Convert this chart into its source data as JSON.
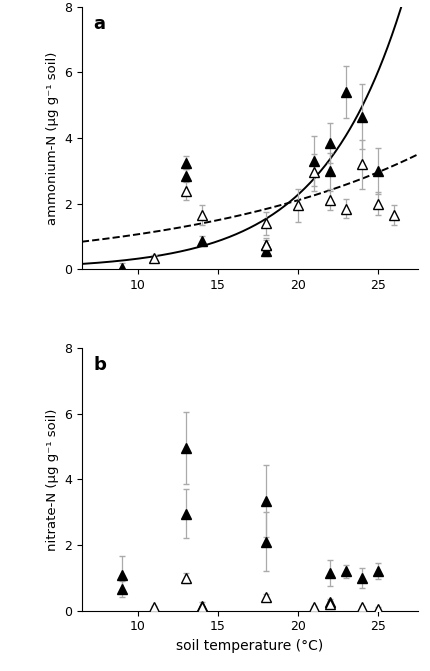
{
  "panel_a_label": "a",
  "panel_b_label": "b",
  "ylabel_a": "ammonium-N (μg g⁻¹ soil)",
  "ylabel_b": "nitrate-N (μg g⁻¹ soil)",
  "xlabel": "soil temperature (°C)",
  "ylim": [
    0,
    8
  ],
  "xlim": [
    6.5,
    27.5
  ],
  "xticks": [
    10,
    15,
    20,
    25
  ],
  "yticks": [
    0,
    2,
    4,
    6,
    8
  ],
  "panel_a": {
    "filled_x": [
      9,
      13,
      13,
      14,
      18,
      18,
      21,
      22,
      22,
      23,
      24,
      25
    ],
    "filled_y": [
      0.05,
      3.25,
      2.85,
      0.85,
      0.75,
      0.55,
      3.3,
      3.0,
      3.85,
      5.4,
      4.65,
      3.0
    ],
    "filled_yerr": [
      0.15,
      0.2,
      0.2,
      0.15,
      0.15,
      0.15,
      0.75,
      0.55,
      0.6,
      0.8,
      1.0,
      0.7
    ],
    "open_x": [
      11,
      13,
      14,
      18,
      18,
      20,
      21,
      22,
      23,
      24,
      25,
      26
    ],
    "open_y": [
      0.35,
      2.4,
      1.65,
      1.4,
      0.75,
      1.95,
      2.95,
      2.1,
      1.85,
      3.2,
      2.0,
      1.65
    ],
    "open_yerr": [
      0.1,
      0.3,
      0.3,
      0.35,
      0.2,
      0.5,
      0.55,
      0.3,
      0.3,
      0.75,
      0.35,
      0.3
    ],
    "curve_solid_a": 0.046,
    "curve_solid_b": 0.195,
    "curve_dashed_a": 0.54,
    "curve_dashed_b": 0.068
  },
  "panel_b": {
    "filled_x": [
      9,
      9,
      13,
      13,
      14,
      18,
      18,
      22,
      22,
      23,
      24,
      25
    ],
    "filled_y": [
      1.1,
      0.65,
      4.95,
      2.95,
      0.15,
      3.35,
      2.1,
      1.15,
      0.25,
      1.2,
      1.0,
      1.2
    ],
    "filled_yerr": [
      0.55,
      0.25,
      1.1,
      0.75,
      0.1,
      1.1,
      0.9,
      0.4,
      0.1,
      0.2,
      0.3,
      0.25
    ],
    "open_x": [
      11,
      13,
      14,
      18,
      21,
      22,
      24,
      25
    ],
    "open_y": [
      0.1,
      1.0,
      0.1,
      0.4,
      0.1,
      0.2,
      0.1,
      0.05
    ],
    "open_yerr": [
      0.05,
      0.15,
      0.05,
      0.1,
      0.05,
      0.1,
      0.05,
      0.05
    ]
  }
}
